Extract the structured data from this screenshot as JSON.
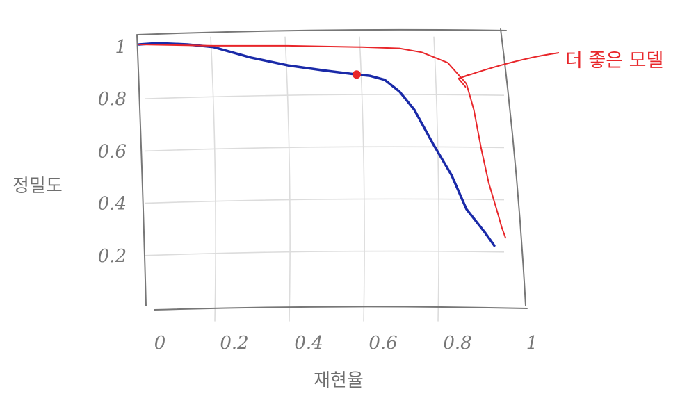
{
  "chart_data": {
    "type": "line",
    "xlabel": "재현율",
    "ylabel": "정밀도",
    "xlim": [
      0,
      1
    ],
    "ylim": [
      0,
      1
    ],
    "grid": true,
    "x_ticks": [
      "0",
      "0.2",
      "0.4",
      "0.6",
      "0.8",
      "1"
    ],
    "y_ticks": [
      "0.2",
      "0.4",
      "0.6",
      "0.8",
      "1"
    ],
    "colors": {
      "series_1": "#1a2aa8",
      "series_2": "#e8262a",
      "marker": "#e8262a",
      "grid": "#dcdcdc",
      "frame": "#777777"
    },
    "series": [
      {
        "color": "#1a2aa8",
        "x": [
          0.0,
          0.05,
          0.13,
          0.2,
          0.3,
          0.4,
          0.5,
          0.585,
          0.62,
          0.66,
          0.7,
          0.74,
          0.79,
          0.84,
          0.88,
          0.93,
          0.955
        ],
        "y": [
          1.0,
          1.005,
          1.0,
          0.99,
          0.95,
          0.92,
          0.9,
          0.885,
          0.88,
          0.865,
          0.82,
          0.75,
          0.62,
          0.5,
          0.37,
          0.28,
          0.23
        ]
      },
      {
        "color": "#e8262a",
        "x": [
          0.0,
          0.2,
          0.4,
          0.6,
          0.7,
          0.76,
          0.83,
          0.88,
          0.9,
          0.92,
          0.94,
          0.965,
          0.975,
          0.985
        ],
        "y": [
          1.0,
          0.995,
          0.995,
          0.99,
          0.985,
          0.97,
          0.93,
          0.85,
          0.75,
          0.6,
          0.47,
          0.35,
          0.3,
          0.26
        ]
      }
    ],
    "marker": {
      "x": 0.585,
      "y": 0.885,
      "color": "#e8262a"
    },
    "annotations": [
      {
        "text": "더 좋은 모델",
        "color": "#e8262a",
        "points_to": {
          "x": 0.855,
          "y": 0.875
        }
      }
    ]
  }
}
